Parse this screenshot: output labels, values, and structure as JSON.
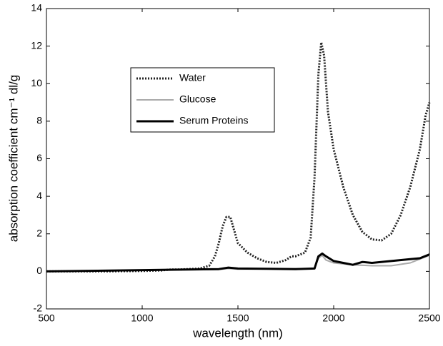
{
  "chart_data": {
    "type": "line",
    "xlabel": "wavelength (nm)",
    "ylabel": "absorption coefficient cm⁻¹ dl/g",
    "xlim": [
      500,
      2500
    ],
    "xticks": [
      500,
      1000,
      1500,
      2000,
      2500
    ],
    "ylim": [
      -2,
      14
    ],
    "yticks": [
      -2,
      0,
      2,
      4,
      6,
      8,
      10,
      12,
      14
    ],
    "grid": false,
    "legend": "upper left",
    "series": [
      {
        "name": "Water",
        "color": "#222222",
        "style": "dotted",
        "x": [
          500,
          800,
          1000,
          1100,
          1150,
          1200,
          1300,
          1350,
          1380,
          1400,
          1420,
          1440,
          1460,
          1480,
          1500,
          1550,
          1600,
          1650,
          1700,
          1750,
          1780,
          1800,
          1850,
          1880,
          1900,
          1920,
          1935,
          1950,
          1970,
          2000,
          2050,
          2100,
          2150,
          2200,
          2250,
          2300,
          2350,
          2400,
          2450,
          2480,
          2500
        ],
        "values": [
          0,
          0,
          0.02,
          0.05,
          0.1,
          0.1,
          0.15,
          0.3,
          0.8,
          1.5,
          2.4,
          2.9,
          2.9,
          2.2,
          1.5,
          1.0,
          0.7,
          0.5,
          0.45,
          0.6,
          0.8,
          0.8,
          1.0,
          1.8,
          5.0,
          10.5,
          12.2,
          11.5,
          8.5,
          6.5,
          4.5,
          3.0,
          2.1,
          1.7,
          1.65,
          2.0,
          3.0,
          4.5,
          6.5,
          8.3,
          9.0
        ]
      },
      {
        "name": "Glucose",
        "color": "#aaaaaa",
        "style": "solid",
        "x": [
          500,
          1400,
          1450,
          1500,
          1900,
          1920,
          1940,
          1960,
          2000,
          2100,
          2200,
          2300,
          2400,
          2500
        ],
        "values": [
          0,
          0.1,
          0.15,
          0.12,
          0.15,
          0.7,
          0.85,
          0.6,
          0.45,
          0.35,
          0.3,
          0.3,
          0.45,
          0.85
        ]
      },
      {
        "name": "Serum Proteins",
        "color": "#000000",
        "style": "thick",
        "x": [
          500,
          1400,
          1450,
          1500,
          1800,
          1900,
          1920,
          1940,
          1960,
          2000,
          2050,
          2100,
          2150,
          2200,
          2300,
          2400,
          2450,
          2500
        ],
        "values": [
          0,
          0.12,
          0.2,
          0.15,
          0.12,
          0.15,
          0.8,
          0.95,
          0.8,
          0.55,
          0.45,
          0.35,
          0.5,
          0.45,
          0.55,
          0.65,
          0.7,
          0.9
        ]
      }
    ]
  }
}
